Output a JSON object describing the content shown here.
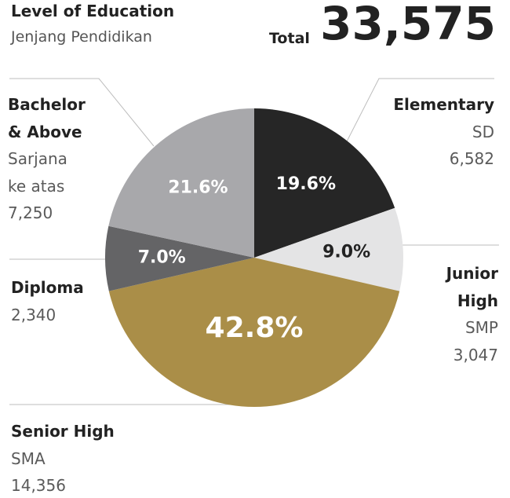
{
  "chart_data": {
    "type": "pie",
    "title": "Level of Education",
    "subtitle": "Jenjang Pendidikan",
    "total_caption": "Total",
    "total": {
      "value": 33575,
      "label": "33,575"
    },
    "categories": [
      "Elementary",
      "Junior High",
      "Senior High",
      "Diploma",
      "Bachelor & Above"
    ],
    "local_names": [
      "SD",
      "SMP",
      "SMA",
      null,
      "Sarjana ke atas"
    ],
    "values": [
      19.6,
      9.0,
      42.8,
      7.0,
      21.6
    ],
    "value_labels": [
      "19.6%",
      "9.0%",
      "42.8%",
      "7.0%",
      "21.6%"
    ],
    "counts": [
      6582,
      3047,
      14356,
      2340,
      7250
    ],
    "count_labels": [
      "6,582",
      "3,047",
      "14,356",
      "2,340",
      "7,250"
    ],
    "colors": [
      "#262626",
      "#e4e4e5",
      "#aa8e48",
      "#646466",
      "#a8a8ab"
    ]
  }
}
